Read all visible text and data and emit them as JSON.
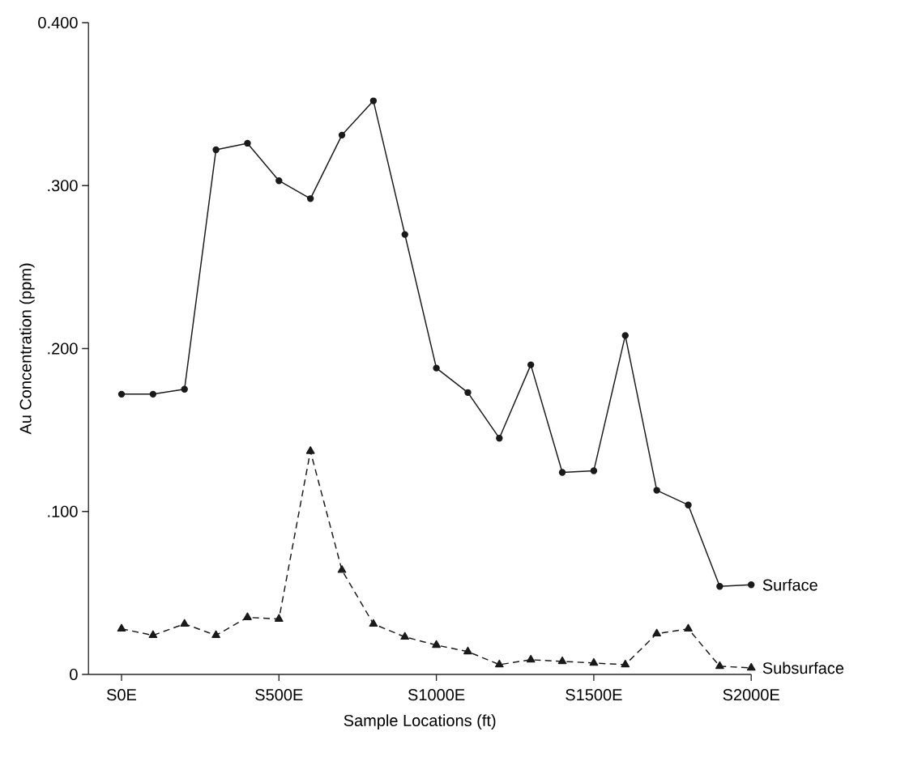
{
  "chart_data": {
    "type": "line",
    "xlabel": "Sample Locations (ft)",
    "ylabel": "Au Concentration (ppm)",
    "categories": [
      "S0E",
      null,
      null,
      null,
      null,
      "S500E",
      null,
      null,
      null,
      null,
      "S1000E",
      null,
      null,
      null,
      null,
      "S1500E",
      null,
      null,
      null,
      null,
      "S2000E"
    ],
    "series": [
      {
        "name": "Surface",
        "color": "#1a1a1a",
        "marker": "circle",
        "line_style": "solid",
        "values": [
          0.172,
          0.172,
          0.175,
          0.322,
          0.326,
          0.303,
          0.292,
          0.331,
          0.352,
          0.27,
          0.188,
          0.173,
          0.145,
          0.19,
          0.124,
          0.125,
          0.208,
          0.113,
          0.104,
          0.054,
          0.055
        ]
      },
      {
        "name": "Subsurface",
        "color": "#1a1a1a",
        "marker": "triangle",
        "line_style": "dashed",
        "values": [
          0.028,
          0.024,
          0.031,
          0.024,
          0.035,
          0.034,
          0.137,
          0.064,
          0.031,
          0.023,
          0.018,
          0.014,
          0.006,
          0.009,
          0.008,
          0.007,
          0.006,
          0.025,
          0.028,
          0.005,
          0.004
        ]
      }
    ],
    "ylim": [
      0,
      0.4
    ],
    "yticks": [
      {
        "value": 0,
        "label": "0"
      },
      {
        "value": 0.1,
        "label": ".100"
      },
      {
        "value": 0.2,
        "label": ".200"
      },
      {
        "value": 0.3,
        "label": ".300"
      },
      {
        "value": 0.4,
        "label": "0.400"
      }
    ]
  }
}
